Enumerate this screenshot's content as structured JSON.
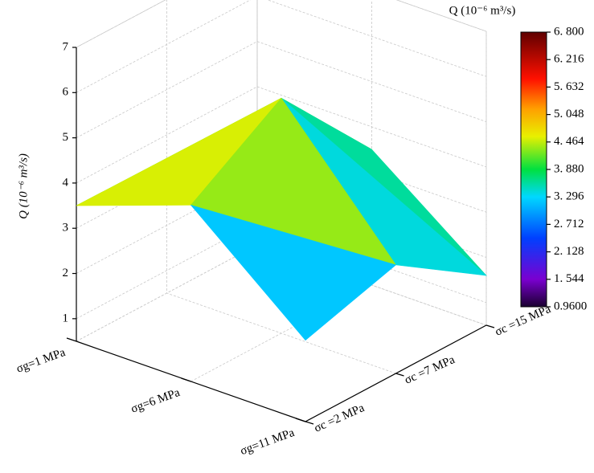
{
  "chart_data": {
    "type": "surface3d",
    "z_label": "Q (10⁻⁶ m³/s)",
    "colorbar_title": "Q (10⁻⁶ m³/s)",
    "g_categories": [
      "σg=1 MPa",
      "σg=6 MPa",
      "σg=11 MPa"
    ],
    "c_categories": [
      "σc =2 MPa",
      "σc =7 MPa",
      "σc =15 MPa"
    ],
    "z": [
      [
        3.5,
        3.0,
        3.2
      ],
      [
        4.4,
        5.7,
        3.5
      ],
      [
        2.3,
        2.9,
        1.6
      ]
    ],
    "zlim": [
      0.5,
      7
    ],
    "zticks": [
      1,
      2,
      3,
      4,
      5,
      6,
      7
    ],
    "clim": [
      0.96,
      6.8
    ],
    "cticks": [
      {
        "value": 0.96,
        "label": "0.9600"
      },
      {
        "value": 1.544,
        "label": "1. 544"
      },
      {
        "value": 2.128,
        "label": "2. 128"
      },
      {
        "value": 2.712,
        "label": "2. 712"
      },
      {
        "value": 3.296,
        "label": "3. 296"
      },
      {
        "value": 3.88,
        "label": "3. 880"
      },
      {
        "value": 4.464,
        "label": "4. 464"
      },
      {
        "value": 5.048,
        "label": "5. 048"
      },
      {
        "value": 5.632,
        "label": "5. 632"
      },
      {
        "value": 6.216,
        "label": "6. 216"
      },
      {
        "value": 6.8,
        "label": "6. 800"
      }
    ],
    "grid": true
  }
}
